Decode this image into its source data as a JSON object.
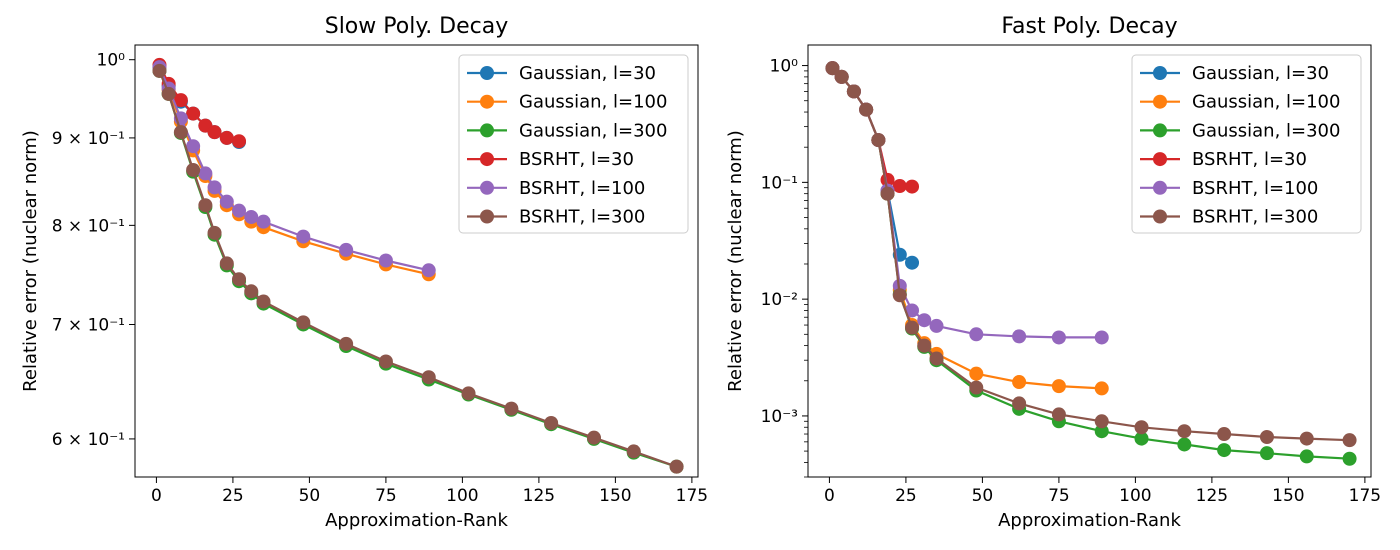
{
  "chart_data": [
    {
      "type": "line",
      "title": "Slow Poly. Decay",
      "xlabel": "Approximation-Rank",
      "ylabel": "Relative error (nuclear norm)",
      "xlim": [
        -7,
        177
      ],
      "ylim": [
        0.57,
        1.02
      ],
      "yscale": "log",
      "grid": false,
      "legend": "top-right",
      "xticks": [
        0,
        25,
        50,
        75,
        100,
        125,
        150,
        175
      ],
      "yticks": [
        {
          "value": 1.0,
          "label": "10⁰"
        },
        {
          "value": 0.9,
          "label": "9 × 10⁻¹"
        },
        {
          "value": 0.8,
          "label": "8 × 10⁻¹"
        },
        {
          "value": 0.7,
          "label": "7 × 10⁻¹"
        },
        {
          "value": 0.6,
          "label": "6 × 10⁻¹"
        }
      ],
      "series": [
        {
          "name": "Gaussian, l=30",
          "color": "#1f77b4",
          "x": [
            1,
            4,
            8,
            12,
            16,
            19,
            23,
            27
          ],
          "y": [
            0.99,
            0.965,
            0.945,
            0.93,
            0.915,
            0.907,
            0.9,
            0.895
          ]
        },
        {
          "name": "Gaussian, l=100",
          "color": "#ff7f0e",
          "x": [
            1,
            4,
            8,
            12,
            16,
            19,
            23,
            27,
            31,
            35,
            48,
            62,
            75,
            89
          ],
          "y": [
            0.99,
            0.96,
            0.92,
            0.885,
            0.855,
            0.838,
            0.822,
            0.812,
            0.804,
            0.798,
            0.783,
            0.77,
            0.759,
            0.749
          ]
        },
        {
          "name": "Gaussian, l=300",
          "color": "#2ca02c",
          "x": [
            1,
            4,
            8,
            12,
            16,
            19,
            23,
            27,
            31,
            35,
            48,
            62,
            75,
            89,
            102,
            116,
            129,
            143,
            156,
            170
          ],
          "y": [
            0.985,
            0.955,
            0.906,
            0.86,
            0.82,
            0.79,
            0.758,
            0.742,
            0.73,
            0.72,
            0.7,
            0.68,
            0.664,
            0.65,
            0.637,
            0.624,
            0.612,
            0.6,
            0.589,
            0.578
          ]
        },
        {
          "name": "BSRHT, l=30",
          "color": "#d62728",
          "x": [
            1,
            4,
            8,
            12,
            16,
            19,
            23,
            27
          ],
          "y": [
            0.993,
            0.968,
            0.947,
            0.93,
            0.915,
            0.907,
            0.9,
            0.896
          ]
        },
        {
          "name": "BSRHT, l=100",
          "color": "#9467bd",
          "x": [
            1,
            4,
            8,
            12,
            16,
            19,
            23,
            27,
            31,
            35,
            48,
            62,
            75,
            89
          ],
          "y": [
            0.99,
            0.962,
            0.924,
            0.89,
            0.858,
            0.842,
            0.826,
            0.816,
            0.809,
            0.804,
            0.788,
            0.774,
            0.763,
            0.753
          ]
        },
        {
          "name": "BSRHT, l=300",
          "color": "#8c564b",
          "x": [
            1,
            4,
            8,
            12,
            16,
            19,
            23,
            27,
            31,
            35,
            48,
            62,
            75,
            89,
            102,
            116,
            129,
            143,
            156,
            170
          ],
          "y": [
            0.985,
            0.955,
            0.907,
            0.862,
            0.822,
            0.792,
            0.76,
            0.744,
            0.732,
            0.722,
            0.702,
            0.682,
            0.666,
            0.652,
            0.638,
            0.625,
            0.613,
            0.601,
            0.59,
            0.578
          ]
        }
      ]
    },
    {
      "type": "line",
      "title": "Fast Poly. Decay",
      "xlabel": "Approximation-Rank",
      "ylabel": "Relative error (nuclear norm)",
      "xlim": [
        -7,
        177
      ],
      "ylim": [
        0.0003,
        1.5
      ],
      "yscale": "log",
      "grid": false,
      "legend": "top-right",
      "xticks": [
        0,
        25,
        50,
        75,
        100,
        125,
        150,
        175
      ],
      "yticks": [
        {
          "value": 1,
          "label": "10⁰"
        },
        {
          "value": 0.1,
          "label": "10⁻¹"
        },
        {
          "value": 0.01,
          "label": "10⁻²"
        },
        {
          "value": 0.001,
          "label": "10⁻³"
        }
      ],
      "series": [
        {
          "name": "Gaussian, l=30",
          "color": "#1f77b4",
          "x": [
            1,
            4,
            8,
            12,
            16,
            19,
            23,
            27
          ],
          "y": [
            0.95,
            0.8,
            0.6,
            0.42,
            0.23,
            0.085,
            0.024,
            0.0205
          ]
        },
        {
          "name": "Gaussian, l=100",
          "color": "#ff7f0e",
          "x": [
            1,
            4,
            8,
            12,
            16,
            19,
            23,
            27,
            31,
            35,
            48,
            62,
            75,
            89
          ],
          "y": [
            0.95,
            0.8,
            0.6,
            0.42,
            0.23,
            0.08,
            0.012,
            0.006,
            0.0042,
            0.0034,
            0.0023,
            0.00195,
            0.0018,
            0.00172
          ]
        },
        {
          "name": "Gaussian, l=300",
          "color": "#2ca02c",
          "x": [
            1,
            4,
            8,
            12,
            16,
            19,
            23,
            27,
            31,
            35,
            48,
            62,
            75,
            89,
            102,
            116,
            129,
            143,
            156,
            170
          ],
          "y": [
            0.95,
            0.8,
            0.6,
            0.42,
            0.23,
            0.08,
            0.011,
            0.0056,
            0.0039,
            0.003,
            0.00165,
            0.00115,
            0.0009,
            0.00074,
            0.00064,
            0.00057,
            0.00051,
            0.00048,
            0.00045,
            0.00043
          ]
        },
        {
          "name": "BSRHT, l=30",
          "color": "#d62728",
          "x": [
            1,
            4,
            8,
            12,
            16,
            19,
            23,
            27
          ],
          "y": [
            0.95,
            0.8,
            0.6,
            0.42,
            0.23,
            0.105,
            0.093,
            0.092
          ]
        },
        {
          "name": "BSRHT, l=100",
          "color": "#9467bd",
          "x": [
            1,
            4,
            8,
            12,
            16,
            19,
            23,
            27,
            31,
            35,
            48,
            62,
            75,
            89
          ],
          "y": [
            0.95,
            0.8,
            0.6,
            0.42,
            0.23,
            0.085,
            0.013,
            0.008,
            0.0066,
            0.0059,
            0.005,
            0.0048,
            0.0047,
            0.0047
          ]
        },
        {
          "name": "BSRHT, l=300",
          "color": "#8c564b",
          "x": [
            1,
            4,
            8,
            12,
            16,
            19,
            23,
            27,
            31,
            35,
            48,
            62,
            75,
            89,
            102,
            116,
            129,
            143,
            156,
            170
          ],
          "y": [
            0.95,
            0.8,
            0.6,
            0.42,
            0.23,
            0.08,
            0.0108,
            0.0057,
            0.004,
            0.0031,
            0.00175,
            0.00128,
            0.00103,
            0.0009,
            0.0008,
            0.00074,
            0.0007,
            0.00066,
            0.00064,
            0.00062
          ]
        }
      ]
    }
  ]
}
